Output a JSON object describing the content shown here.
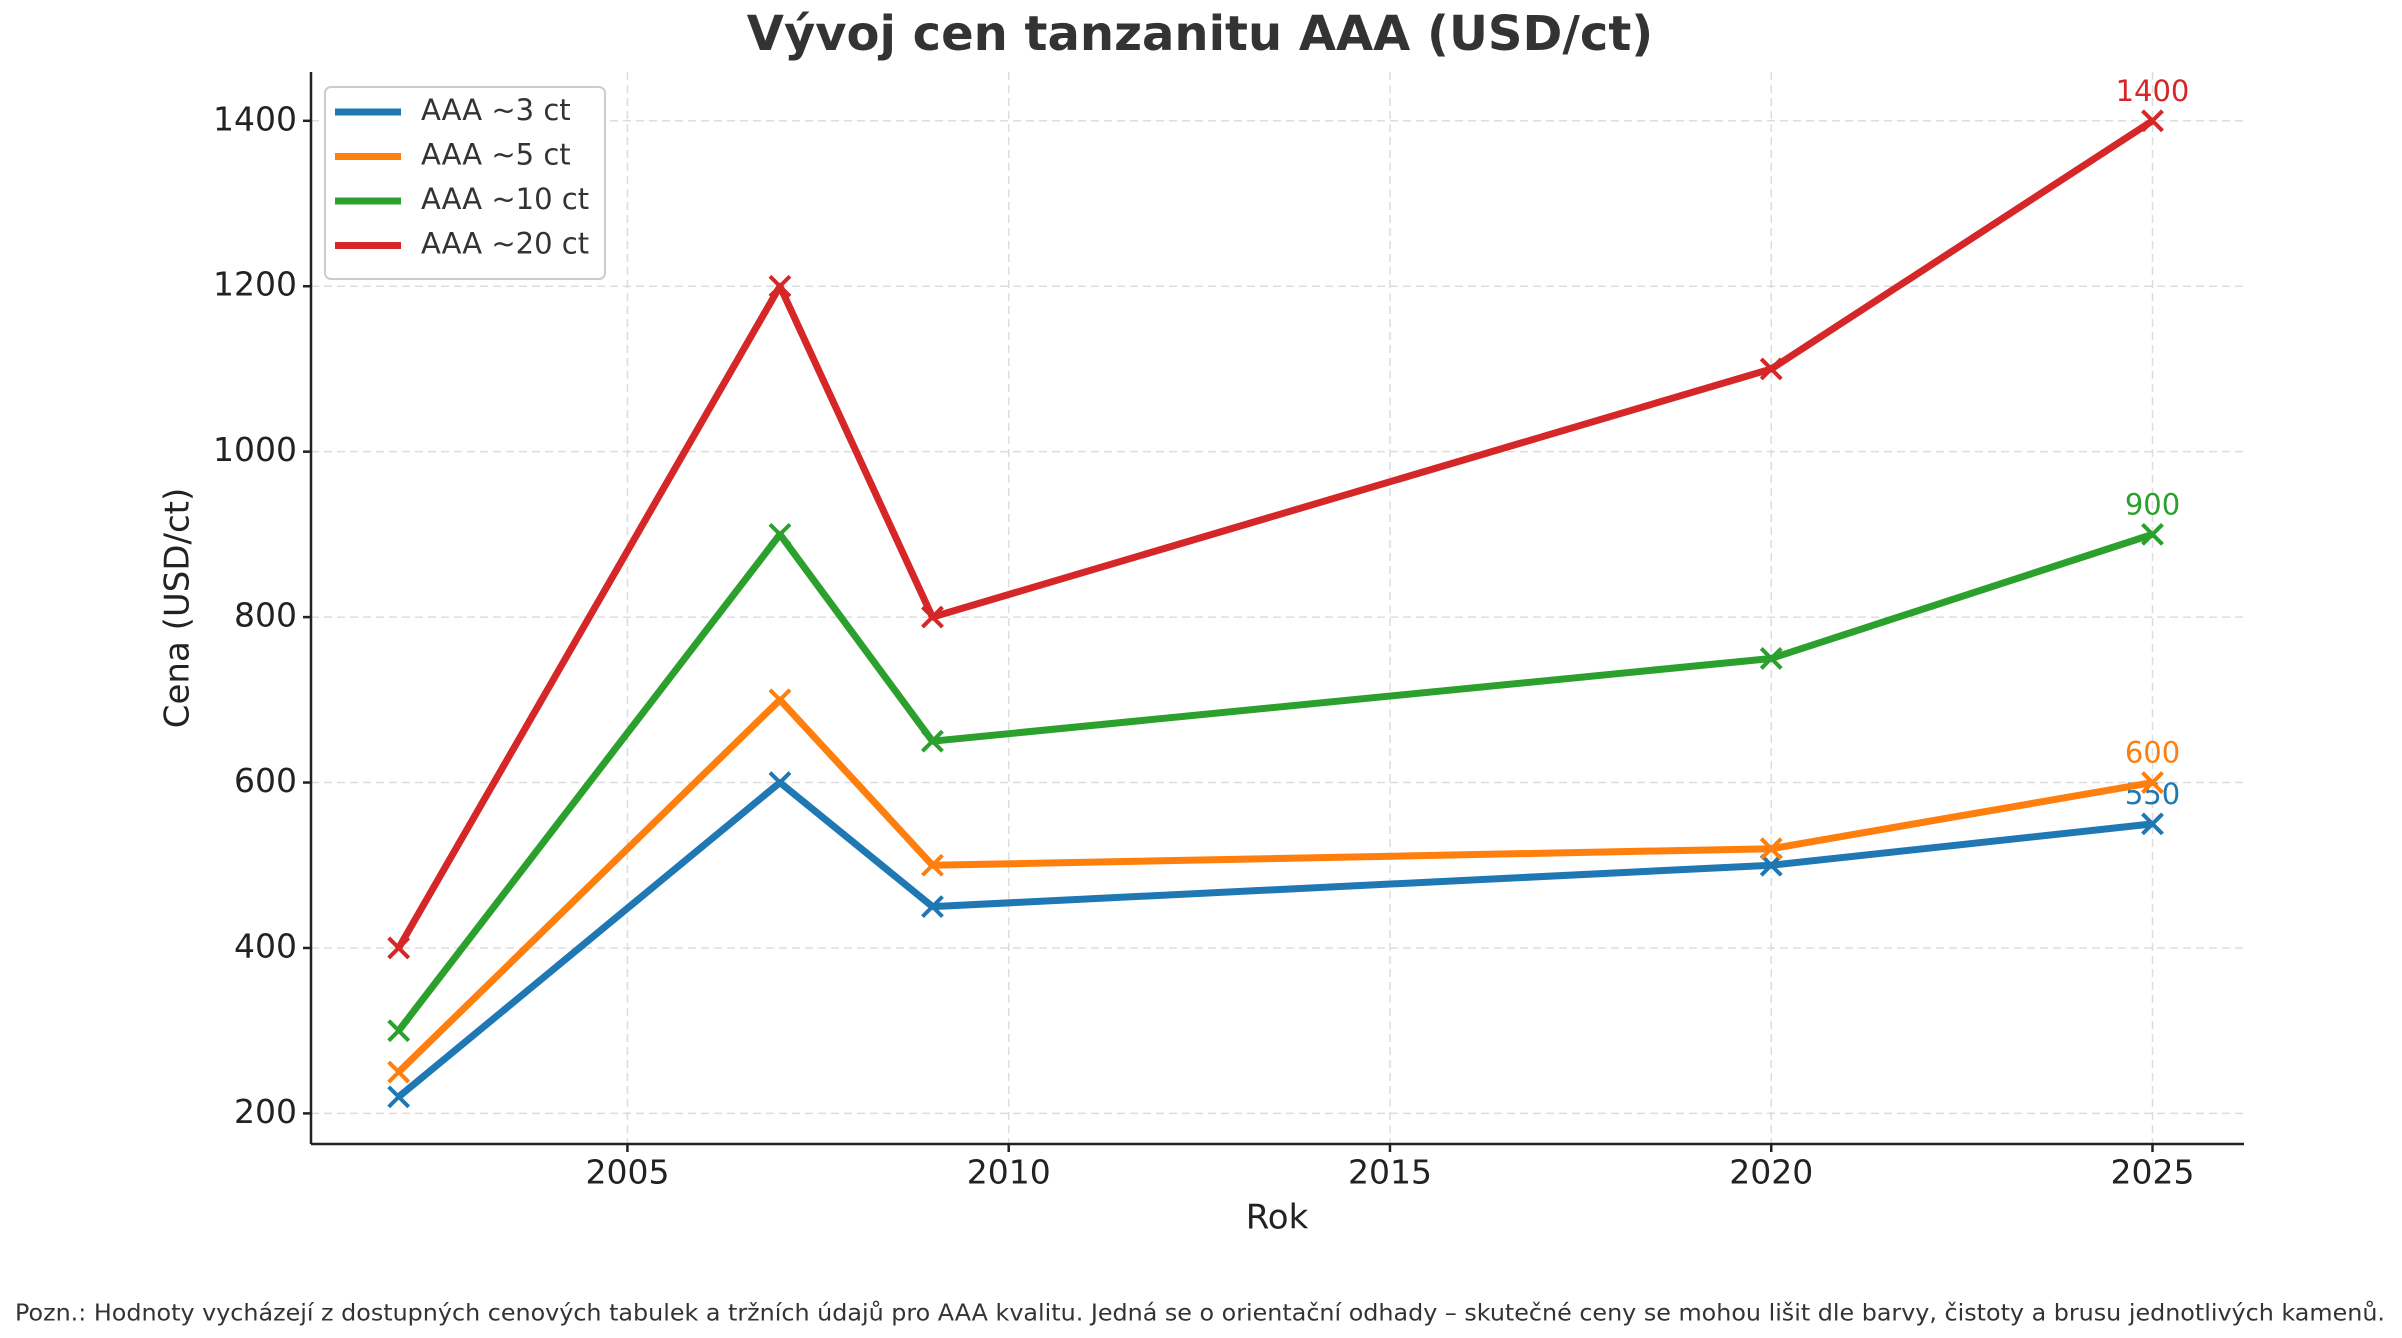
{
  "chart_data": {
    "type": "line",
    "title": "Vývoj cen tanzanitu AAA (USD/ct)",
    "x_label": "Rok",
    "y_label": "Cena (USD/ct)",
    "note": "Pozn.: Hodnoty vycházejí z dostupných cenových tabulek a tržních údajů pro AAA kvalitu. Jedná se o orientační odhady – skutečné ceny se mohou lišit dle barvy, čistoty a brusu jednotlivých kamenů.",
    "x": [
      2002,
      2007,
      2009,
      2020,
      2025
    ],
    "series": [
      {
        "name": "AAA ~3 ct",
        "color": "#1f77b4",
        "values": [
          220,
          600,
          450,
          500,
          550
        ]
      },
      {
        "name": "AAA ~5 ct",
        "color": "#ff7f0e",
        "values": [
          250,
          700,
          500,
          520,
          600
        ]
      },
      {
        "name": "AAA ~10 ct",
        "color": "#2ca02c",
        "values": [
          300,
          900,
          650,
          750,
          900
        ]
      },
      {
        "name": "AAA ~20 ct",
        "color": "#d62728",
        "values": [
          400,
          1200,
          800,
          1100,
          1400
        ]
      }
    ],
    "xlim": [
      2000.85,
      2026.2
    ],
    "ylim": [
      163,
      1459
    ],
    "xticks": [
      2005,
      2010,
      2015,
      2020,
      2025
    ],
    "yticks": [
      200,
      400,
      600,
      800,
      1000,
      1200,
      1400
    ],
    "grid": true,
    "legend": "upper left",
    "label_last_point": true
  }
}
